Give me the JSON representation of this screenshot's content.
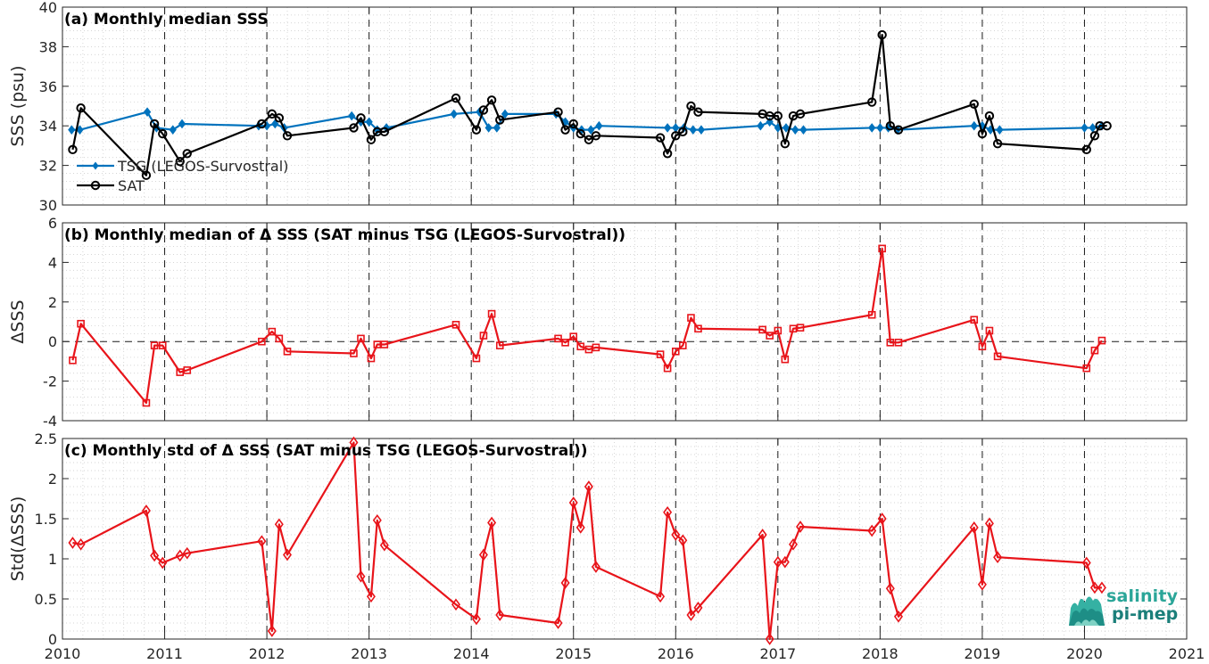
{
  "chart_data": [
    {
      "type": "line",
      "title": "(a) Monthly median SSS",
      "xlabel": "",
      "ylabel": "SSS (psu)",
      "xlim": [
        2010,
        2021
      ],
      "ylim": [
        30,
        40
      ],
      "yticks": [
        30,
        32,
        34,
        36,
        38,
        40
      ],
      "grid": true,
      "legend": "bottom-left",
      "series": [
        {
          "name": "TSG (LEGOS-Survostral)",
          "color": "#0072bd",
          "marker": "diamond-filled",
          "x": [
            2010.09,
            2010.17,
            2010.83,
            2010.92,
            2011.08,
            2011.17,
            2011.92,
            2012.0,
            2012.08,
            2012.17,
            2012.83,
            2012.92,
            2013.0,
            2013.08,
            2013.17,
            2013.83,
            2014.08,
            2014.17,
            2014.25,
            2014.33,
            2014.83,
            2014.92,
            2015.0,
            2015.08,
            2015.17,
            2015.25,
            2015.92,
            2016.0,
            2016.08,
            2016.17,
            2016.25,
            2016.83,
            2016.92,
            2017.0,
            2017.08,
            2017.17,
            2017.25,
            2017.92,
            2018.0,
            2018.08,
            2018.17,
            2018.92,
            2019.0,
            2019.08,
            2019.17,
            2020.0,
            2020.08,
            2020.17
          ],
          "values": [
            33.8,
            33.8,
            34.7,
            33.9,
            33.8,
            34.1,
            34.0,
            34.0,
            34.1,
            33.9,
            34.5,
            34.2,
            34.2,
            33.8,
            33.9,
            34.6,
            34.7,
            33.9,
            33.9,
            34.6,
            34.6,
            34.2,
            33.9,
            33.8,
            33.8,
            34.0,
            33.9,
            33.9,
            33.9,
            33.8,
            33.8,
            34.0,
            34.2,
            33.9,
            33.9,
            33.8,
            33.8,
            33.9,
            33.9,
            33.9,
            33.8,
            34.0,
            34.0,
            33.8,
            33.8,
            33.9,
            33.9,
            34.0
          ]
        },
        {
          "name": "SAT",
          "color": "#000000",
          "marker": "circle-open",
          "x": [
            2010.1,
            2010.18,
            2010.82,
            2010.9,
            2010.98,
            2011.15,
            2011.22,
            2011.95,
            2012.05,
            2012.12,
            2012.2,
            2012.85,
            2012.92,
            2013.02,
            2013.08,
            2013.15,
            2013.85,
            2014.05,
            2014.12,
            2014.2,
            2014.28,
            2014.85,
            2014.92,
            2015.0,
            2015.07,
            2015.15,
            2015.22,
            2015.85,
            2015.92,
            2016.0,
            2016.07,
            2016.15,
            2016.22,
            2016.85,
            2016.92,
            2017.0,
            2017.07,
            2017.15,
            2017.22,
            2017.92,
            2018.02,
            2018.1,
            2018.18,
            2018.92,
            2019.0,
            2019.07,
            2019.15,
            2020.02,
            2020.1,
            2020.15,
            2020.22
          ],
          "values": [
            32.8,
            34.9,
            31.5,
            34.1,
            33.6,
            32.2,
            32.6,
            34.1,
            34.6,
            34.4,
            33.5,
            33.9,
            34.4,
            33.3,
            33.7,
            33.7,
            35.4,
            33.8,
            34.8,
            35.3,
            34.3,
            34.7,
            33.8,
            34.1,
            33.6,
            33.3,
            33.5,
            33.4,
            32.6,
            33.5,
            33.7,
            35.0,
            34.7,
            34.6,
            34.5,
            34.5,
            33.1,
            34.5,
            34.6,
            35.2,
            38.6,
            34.0,
            33.8,
            35.1,
            33.6,
            34.5,
            33.1,
            32.8,
            33.5,
            34.0,
            34.0
          ]
        }
      ],
      "xticks": [
        2010,
        2011,
        2012,
        2013,
        2014,
        2015,
        2016,
        2017,
        2018,
        2019,
        2020,
        2021
      ]
    },
    {
      "type": "line",
      "title": "(b) Monthly median of Δ SSS (SAT minus TSG (LEGOS-Survostral))",
      "xlabel": "",
      "ylabel": "ΔSSS",
      "xlim": [
        2010,
        2021
      ],
      "ylim": [
        -4,
        6
      ],
      "yticks": [
        -4,
        -2,
        0,
        2,
        4,
        6
      ],
      "grid": true,
      "zero_line": "dashed",
      "series": [
        {
          "name": "",
          "color": "#e8141a",
          "marker": "square-open",
          "x": [
            2010.1,
            2010.18,
            2010.82,
            2010.9,
            2010.98,
            2011.15,
            2011.22,
            2011.95,
            2012.05,
            2012.12,
            2012.2,
            2012.85,
            2012.92,
            2013.02,
            2013.08,
            2013.15,
            2013.85,
            2014.05,
            2014.12,
            2014.2,
            2014.28,
            2014.85,
            2014.92,
            2015.0,
            2015.07,
            2015.15,
            2015.22,
            2015.85,
            2015.92,
            2016.0,
            2016.07,
            2016.15,
            2016.22,
            2016.85,
            2016.92,
            2017.0,
            2017.07,
            2017.15,
            2017.22,
            2017.92,
            2018.02,
            2018.1,
            2018.18,
            2018.92,
            2019.0,
            2019.07,
            2019.15,
            2020.02,
            2020.1,
            2020.17
          ],
          "values": [
            -0.95,
            0.9,
            -3.1,
            -0.2,
            -0.2,
            -1.55,
            -1.45,
            0.0,
            0.5,
            0.15,
            -0.5,
            -0.6,
            0.15,
            -0.85,
            -0.15,
            -0.15,
            0.85,
            -0.85,
            0.3,
            1.4,
            -0.2,
            0.15,
            -0.05,
            0.25,
            -0.25,
            -0.4,
            -0.3,
            -0.65,
            -1.35,
            -0.5,
            -0.2,
            1.2,
            0.65,
            0.6,
            0.3,
            0.55,
            -0.9,
            0.65,
            0.7,
            1.35,
            4.7,
            -0.05,
            -0.05,
            1.1,
            -0.25,
            0.55,
            -0.75,
            -1.35,
            -0.45,
            0.05
          ]
        }
      ],
      "xticks": [
        2010,
        2011,
        2012,
        2013,
        2014,
        2015,
        2016,
        2017,
        2018,
        2019,
        2020,
        2021
      ]
    },
    {
      "type": "line",
      "title": "(c) Monthly std of Δ SSS (SAT minus TSG (LEGOS-Survostral))",
      "xlabel": "",
      "ylabel": "Std(ΔSSS)",
      "xlim": [
        2010,
        2021
      ],
      "ylim": [
        0,
        2.5
      ],
      "yticks": [
        0,
        0.5,
        1,
        1.5,
        2,
        2.5
      ],
      "grid": true,
      "series": [
        {
          "name": "",
          "color": "#e8141a",
          "marker": "diamond-open",
          "x": [
            2010.1,
            2010.18,
            2010.82,
            2010.9,
            2010.98,
            2011.15,
            2011.22,
            2011.95,
            2012.05,
            2012.12,
            2012.2,
            2012.85,
            2012.92,
            2013.02,
            2013.08,
            2013.15,
            2013.85,
            2014.05,
            2014.12,
            2014.2,
            2014.28,
            2014.85,
            2014.92,
            2015.0,
            2015.07,
            2015.15,
            2015.22,
            2015.85,
            2015.92,
            2016.0,
            2016.07,
            2016.15,
            2016.22,
            2016.85,
            2016.92,
            2017.0,
            2017.07,
            2017.15,
            2017.22,
            2017.92,
            2018.02,
            2018.1,
            2018.18,
            2018.92,
            2019.0,
            2019.07,
            2019.15,
            2020.02,
            2020.1,
            2020.17
          ],
          "values": [
            1.2,
            1.18,
            1.6,
            1.04,
            0.95,
            1.04,
            1.07,
            1.22,
            0.1,
            1.43,
            1.05,
            2.45,
            0.78,
            0.53,
            1.48,
            1.17,
            0.43,
            0.25,
            1.05,
            1.45,
            0.3,
            0.2,
            0.7,
            1.7,
            1.39,
            1.9,
            0.9,
            0.53,
            1.58,
            1.3,
            1.23,
            0.3,
            0.39,
            1.3,
            0.0,
            0.96,
            0.96,
            1.18,
            1.4,
            1.35,
            1.5,
            0.63,
            0.28,
            1.39,
            0.68,
            1.44,
            1.02,
            0.95,
            0.64,
            0.64
          ]
        }
      ],
      "xticks": [
        2010,
        2011,
        2012,
        2013,
        2014,
        2015,
        2016,
        2017,
        2018,
        2019,
        2020,
        2021
      ]
    }
  ],
  "logo": {
    "line1": "salinity",
    "line2": "pi-mep"
  }
}
